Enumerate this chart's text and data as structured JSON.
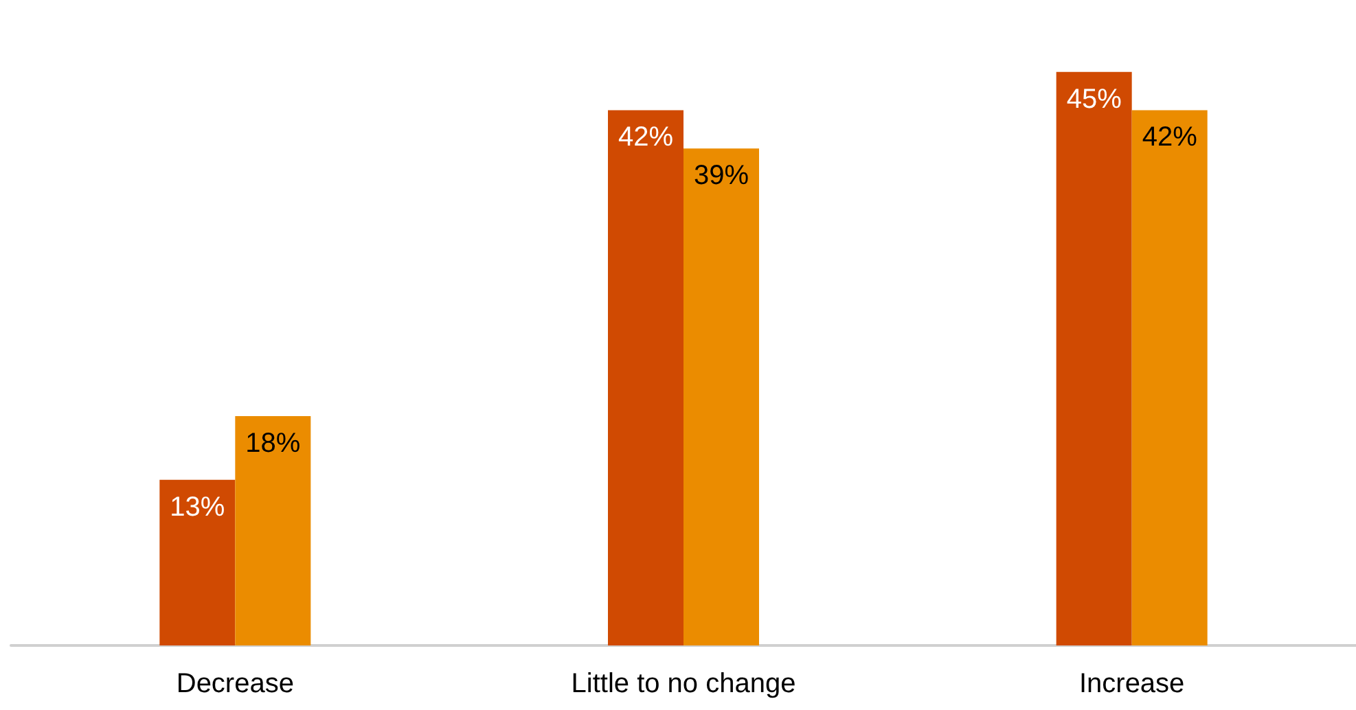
{
  "chart_data": {
    "type": "bar",
    "categories": [
      "Decrease",
      "Little to no change",
      "Increase"
    ],
    "series": [
      {
        "color": "#d04a02",
        "values": [
          13,
          42,
          45
        ],
        "value_labels": [
          "13%",
          "42%",
          "45%"
        ]
      },
      {
        "color": "#eb8c00",
        "values": [
          18,
          39,
          42
        ],
        "value_labels": [
          "18%",
          "39%",
          "42%"
        ]
      }
    ]
  }
}
